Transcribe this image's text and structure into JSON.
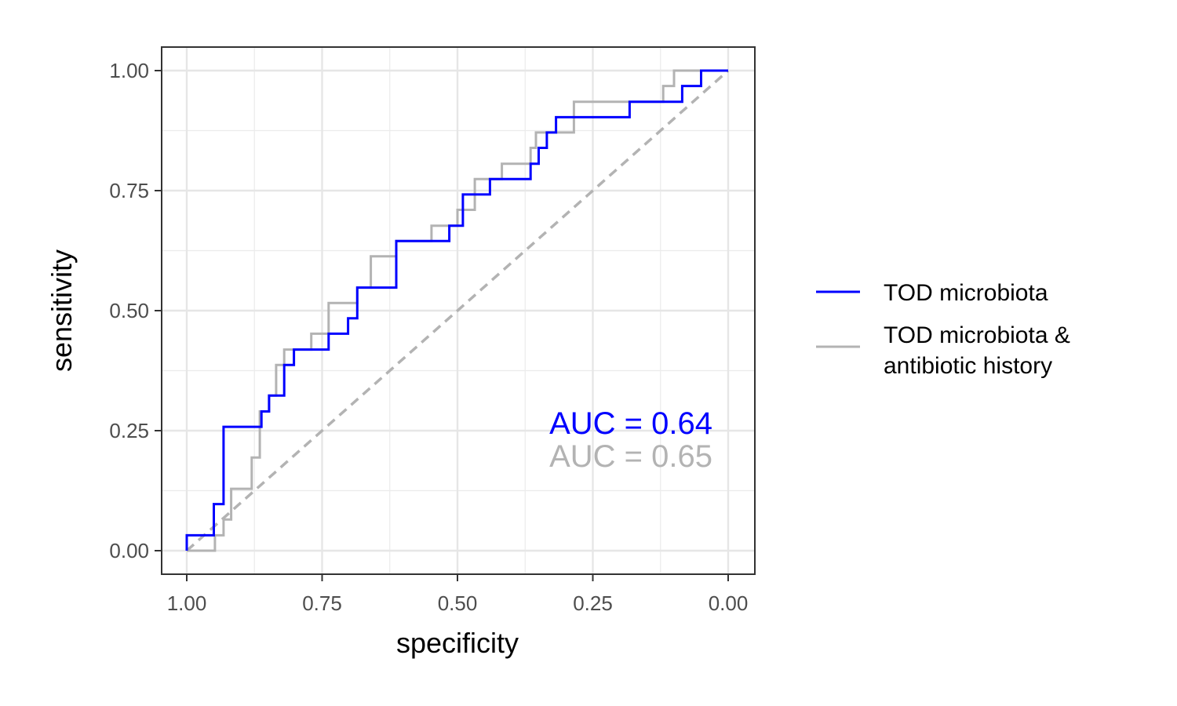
{
  "chart_data": {
    "type": "line",
    "xlabel": "specificity",
    "ylabel": "sensitivity",
    "x_reversed": true,
    "xlim": [
      1.0,
      0.0
    ],
    "ylim": [
      0.0,
      1.0
    ],
    "x_ticks": [
      1.0,
      0.75,
      0.5,
      0.25,
      0.0
    ],
    "y_ticks": [
      0.0,
      0.25,
      0.5,
      0.75,
      1.0
    ],
    "x_tick_labels": [
      "1.00",
      "0.75",
      "0.50",
      "0.25",
      "0.00"
    ],
    "y_tick_labels": [
      "0.00",
      "0.25",
      "0.50",
      "0.75",
      "1.00"
    ],
    "grid": true,
    "legend_position": "right",
    "legend": [
      "TOD microbiota",
      "TOD microbiota &",
      "antibiotic history"
    ],
    "annotations": [
      "AUC = 0.64",
      "AUC = 0.65"
    ],
    "series": [
      {
        "name": "TOD microbiota",
        "color": "#0000ff",
        "auc": 0.64,
        "points": [
          [
            1.0,
            0.0
          ],
          [
            1.0,
            0.032
          ],
          [
            0.95,
            0.032
          ],
          [
            0.95,
            0.097
          ],
          [
            0.932,
            0.097
          ],
          [
            0.932,
            0.258
          ],
          [
            0.862,
            0.258
          ],
          [
            0.862,
            0.29
          ],
          [
            0.848,
            0.29
          ],
          [
            0.848,
            0.323
          ],
          [
            0.82,
            0.323
          ],
          [
            0.82,
            0.387
          ],
          [
            0.802,
            0.387
          ],
          [
            0.802,
            0.419
          ],
          [
            0.738,
            0.419
          ],
          [
            0.738,
            0.452
          ],
          [
            0.702,
            0.452
          ],
          [
            0.702,
            0.484
          ],
          [
            0.685,
            0.484
          ],
          [
            0.685,
            0.548
          ],
          [
            0.613,
            0.548
          ],
          [
            0.613,
            0.645
          ],
          [
            0.515,
            0.645
          ],
          [
            0.515,
            0.677
          ],
          [
            0.49,
            0.677
          ],
          [
            0.49,
            0.742
          ],
          [
            0.44,
            0.742
          ],
          [
            0.44,
            0.774
          ],
          [
            0.365,
            0.774
          ],
          [
            0.365,
            0.806
          ],
          [
            0.35,
            0.806
          ],
          [
            0.35,
            0.839
          ],
          [
            0.335,
            0.839
          ],
          [
            0.335,
            0.871
          ],
          [
            0.318,
            0.871
          ],
          [
            0.318,
            0.903
          ],
          [
            0.182,
            0.903
          ],
          [
            0.182,
            0.935
          ],
          [
            0.11,
            0.935
          ],
          [
            0.11,
            0.935
          ],
          [
            0.085,
            0.935
          ],
          [
            0.085,
            0.968
          ],
          [
            0.05,
            0.968
          ],
          [
            0.05,
            1.0
          ],
          [
            0.0,
            1.0
          ]
        ]
      },
      {
        "name": "TOD microbiota & antibiotic history",
        "color": "#b3b3b3",
        "auc": 0.65,
        "points": [
          [
            1.0,
            0.0
          ],
          [
            0.948,
            0.0
          ],
          [
            0.948,
            0.032
          ],
          [
            0.932,
            0.032
          ],
          [
            0.932,
            0.065
          ],
          [
            0.918,
            0.065
          ],
          [
            0.918,
            0.129
          ],
          [
            0.88,
            0.129
          ],
          [
            0.88,
            0.194
          ],
          [
            0.865,
            0.194
          ],
          [
            0.865,
            0.29
          ],
          [
            0.848,
            0.29
          ],
          [
            0.848,
            0.323
          ],
          [
            0.835,
            0.323
          ],
          [
            0.835,
            0.387
          ],
          [
            0.82,
            0.387
          ],
          [
            0.82,
            0.419
          ],
          [
            0.77,
            0.419
          ],
          [
            0.77,
            0.452
          ],
          [
            0.738,
            0.452
          ],
          [
            0.738,
            0.516
          ],
          [
            0.685,
            0.516
          ],
          [
            0.685,
            0.548
          ],
          [
            0.66,
            0.548
          ],
          [
            0.66,
            0.613
          ],
          [
            0.613,
            0.613
          ],
          [
            0.613,
            0.645
          ],
          [
            0.548,
            0.645
          ],
          [
            0.548,
            0.677
          ],
          [
            0.5,
            0.677
          ],
          [
            0.5,
            0.71
          ],
          [
            0.468,
            0.71
          ],
          [
            0.468,
            0.774
          ],
          [
            0.418,
            0.774
          ],
          [
            0.418,
            0.806
          ],
          [
            0.365,
            0.806
          ],
          [
            0.365,
            0.839
          ],
          [
            0.355,
            0.839
          ],
          [
            0.355,
            0.871
          ],
          [
            0.285,
            0.871
          ],
          [
            0.285,
            0.935
          ],
          [
            0.12,
            0.935
          ],
          [
            0.12,
            0.968
          ],
          [
            0.1,
            0.968
          ],
          [
            0.1,
            1.0
          ],
          [
            0.0,
            1.0
          ]
        ]
      }
    ],
    "reference_line": {
      "from": [
        1.0,
        0.0
      ],
      "to": [
        0.0,
        1.0
      ],
      "color": "#b3b3b3",
      "style": "dashed"
    }
  }
}
